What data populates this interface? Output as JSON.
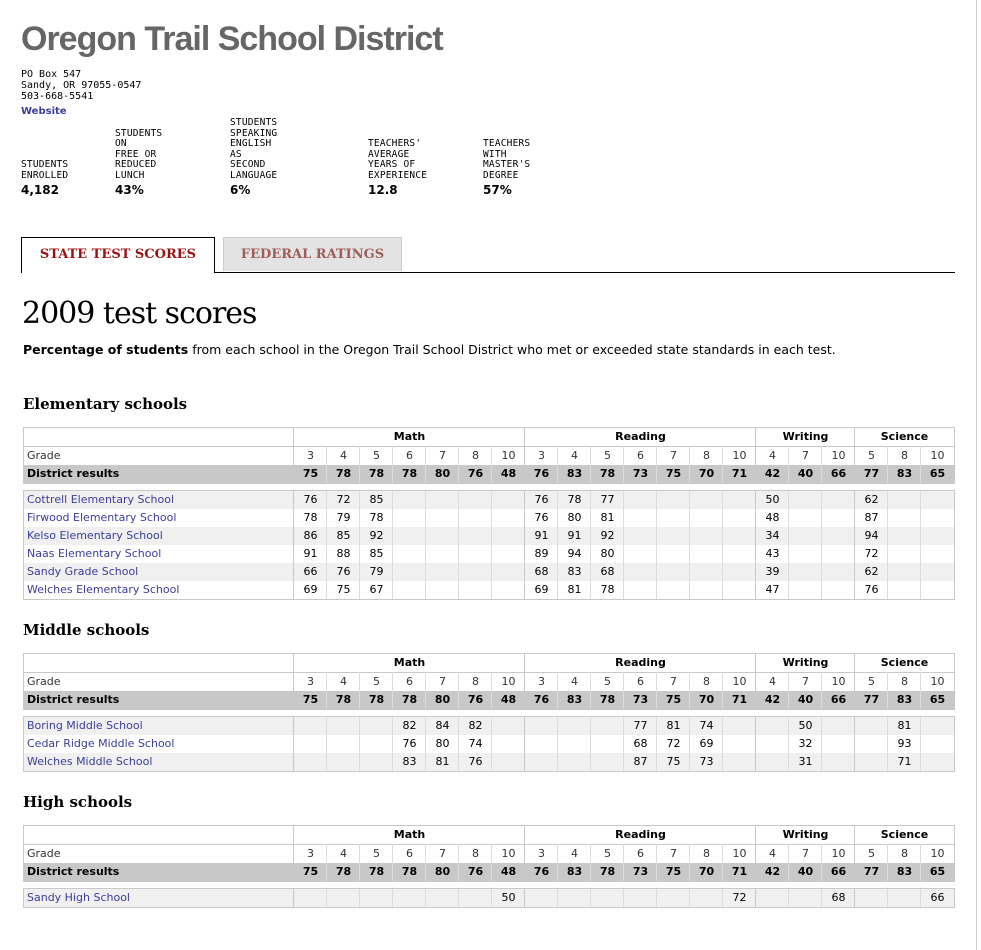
{
  "district": {
    "name": "Oregon Trail School District",
    "address": [
      "PO Box 547",
      "Sandy, OR 97055-0547",
      "503-668-5541"
    ],
    "website_label": "Website"
  },
  "stats": [
    {
      "label": [
        "STUDENTS",
        "ENROLLED"
      ],
      "value": "4,182"
    },
    {
      "label": [
        "STUDENTS ON",
        "FREE OR",
        "REDUCED",
        "LUNCH"
      ],
      "value": "43%"
    },
    {
      "label": [
        "STUDENTS",
        "SPEAKING ENGLISH",
        "AS SECOND",
        "LANGUAGE"
      ],
      "value": "6%"
    },
    {
      "label": [
        "TEACHERS'",
        "AVERAGE",
        "YEARS OF",
        "EXPERIENCE"
      ],
      "value": "12.8"
    },
    {
      "label": [
        "TEACHERS",
        "WITH",
        "MASTER'S",
        "DEGREE"
      ],
      "value": "57%"
    }
  ],
  "tabs": {
    "active": "STATE TEST SCORES",
    "inactive": "FEDERAL RATINGS"
  },
  "scores": {
    "heading": "2009 test scores",
    "desc_bold": "Percentage of students",
    "desc_rest": " from each school in the Oregon Trail School District who met or exceeded state standards in each test."
  },
  "table_labels": {
    "grade": "Grade",
    "district": "District results"
  },
  "subjects": [
    {
      "name": "Math",
      "grades": [
        "3",
        "4",
        "5",
        "6",
        "7",
        "8",
        "10"
      ]
    },
    {
      "name": "Reading",
      "grades": [
        "3",
        "4",
        "5",
        "6",
        "7",
        "8",
        "10"
      ]
    },
    {
      "name": "Writing",
      "grades": [
        "4",
        "7",
        "10"
      ]
    },
    {
      "name": "Science",
      "grades": [
        "5",
        "8",
        "10"
      ]
    }
  ],
  "district_results": [
    "75",
    "78",
    "78",
    "78",
    "80",
    "76",
    "48",
    "76",
    "83",
    "78",
    "73",
    "75",
    "70",
    "71",
    "42",
    "40",
    "66",
    "77",
    "83",
    "65"
  ],
  "sections": [
    {
      "title": "Elementary schools",
      "schools": [
        {
          "name": "Cottrell Elementary School",
          "scores": [
            "76",
            "72",
            "85",
            "",
            "",
            "",
            "",
            "76",
            "78",
            "77",
            "",
            "",
            "",
            "",
            "50",
            "",
            "",
            "62",
            "",
            ""
          ]
        },
        {
          "name": "Firwood Elementary School",
          "scores": [
            "78",
            "79",
            "78",
            "",
            "",
            "",
            "",
            "76",
            "80",
            "81",
            "",
            "",
            "",
            "",
            "48",
            "",
            "",
            "87",
            "",
            ""
          ]
        },
        {
          "name": "Kelso Elementary School",
          "scores": [
            "86",
            "85",
            "92",
            "",
            "",
            "",
            "",
            "91",
            "91",
            "92",
            "",
            "",
            "",
            "",
            "34",
            "",
            "",
            "94",
            "",
            ""
          ]
        },
        {
          "name": "Naas Elementary School",
          "scores": [
            "91",
            "88",
            "85",
            "",
            "",
            "",
            "",
            "89",
            "94",
            "80",
            "",
            "",
            "",
            "",
            "43",
            "",
            "",
            "72",
            "",
            ""
          ]
        },
        {
          "name": "Sandy Grade School",
          "scores": [
            "66",
            "76",
            "79",
            "",
            "",
            "",
            "",
            "68",
            "83",
            "68",
            "",
            "",
            "",
            "",
            "39",
            "",
            "",
            "62",
            "",
            ""
          ]
        },
        {
          "name": "Welches Elementary School",
          "scores": [
            "69",
            "75",
            "67",
            "",
            "",
            "",
            "",
            "69",
            "81",
            "78",
            "",
            "",
            "",
            "",
            "47",
            "",
            "",
            "76",
            "",
            ""
          ]
        }
      ]
    },
    {
      "title": "Middle schools",
      "schools": [
        {
          "name": "Boring Middle School",
          "scores": [
            "",
            "",
            "",
            "82",
            "84",
            "82",
            "",
            "",
            "",
            "",
            "77",
            "81",
            "74",
            "",
            "",
            "50",
            "",
            "",
            "81",
            ""
          ]
        },
        {
          "name": "Cedar Ridge Middle School",
          "scores": [
            "",
            "",
            "",
            "76",
            "80",
            "74",
            "",
            "",
            "",
            "",
            "68",
            "72",
            "69",
            "",
            "",
            "32",
            "",
            "",
            "93",
            ""
          ]
        },
        {
          "name": "Welches Middle School",
          "scores": [
            "",
            "",
            "",
            "83",
            "81",
            "76",
            "",
            "",
            "",
            "",
            "87",
            "75",
            "73",
            "",
            "",
            "31",
            "",
            "",
            "71",
            ""
          ]
        }
      ]
    },
    {
      "title": "High schools",
      "schools": [
        {
          "name": "Sandy High School",
          "scores": [
            "",
            "",
            "",
            "",
            "",
            "",
            "50",
            "",
            "",
            "",
            "",
            "",
            "",
            "72",
            "",
            "",
            "68",
            "",
            "",
            "66"
          ]
        }
      ]
    }
  ]
}
